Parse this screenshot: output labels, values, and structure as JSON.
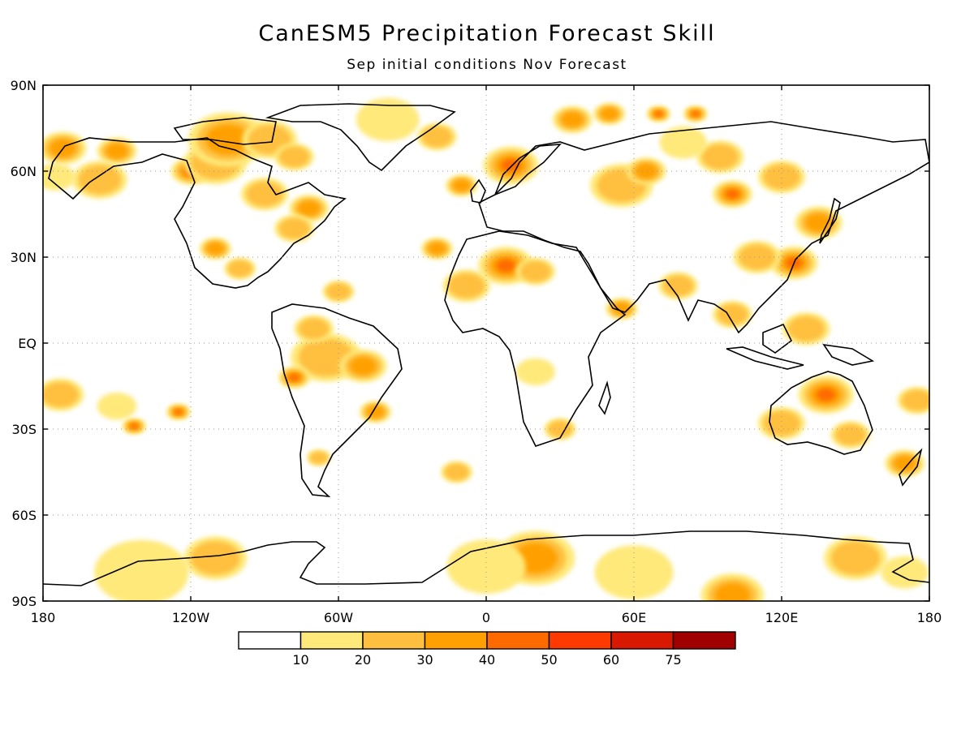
{
  "title": "CanESM5 Precipitation Forecast Skill",
  "subtitle": "Sep initial conditions   Nov Forecast",
  "map": {
    "projection": "equirectangular",
    "lon_range": [
      -180,
      180
    ],
    "lat_range": [
      -90,
      90
    ],
    "lat_ticks": [
      {
        "lat": 90,
        "label": "90N"
      },
      {
        "lat": 60,
        "label": "60N"
      },
      {
        "lat": 30,
        "label": "30N"
      },
      {
        "lat": 0,
        "label": "EQ"
      },
      {
        "lat": -30,
        "label": "30S"
      },
      {
        "lat": -60,
        "label": "60S"
      },
      {
        "lat": -90,
        "label": "90S"
      }
    ],
    "lon_ticks": [
      {
        "lon": -180,
        "label": "180"
      },
      {
        "lon": -120,
        "label": "120W"
      },
      {
        "lon": -60,
        "label": "60W"
      },
      {
        "lon": 0,
        "label": "0"
      },
      {
        "lon": 60,
        "label": "60E"
      },
      {
        "lon": 120,
        "label": "120E"
      },
      {
        "lon": 180,
        "label": "180"
      }
    ],
    "grid": "dotted",
    "skill_patches": [
      {
        "lon": -172,
        "lat": 68,
        "r": 6,
        "level": 3
      },
      {
        "lon": -150,
        "lat": 67,
        "r": 5,
        "level": 3
      },
      {
        "lon": -157,
        "lat": 57,
        "r": 7,
        "level": 2
      },
      {
        "lon": -175,
        "lat": 58,
        "r": 5,
        "level": 1
      },
      {
        "lon": -120,
        "lat": 60,
        "r": 5,
        "level": 4
      },
      {
        "lon": -110,
        "lat": 63,
        "r": 8,
        "level": 2
      },
      {
        "lon": -105,
        "lat": 71,
        "r": 10,
        "level": 3
      },
      {
        "lon": -88,
        "lat": 71,
        "r": 7,
        "level": 2
      },
      {
        "lon": -78,
        "lat": 65,
        "r": 5,
        "level": 2
      },
      {
        "lon": -90,
        "lat": 52,
        "r": 6,
        "level": 2
      },
      {
        "lon": -72,
        "lat": 47,
        "r": 5,
        "level": 3
      },
      {
        "lon": -78,
        "lat": 40,
        "r": 5,
        "level": 2
      },
      {
        "lon": -40,
        "lat": 78,
        "r": 8,
        "level": 1
      },
      {
        "lon": -20,
        "lat": 72,
        "r": 5,
        "level": 2
      },
      {
        "lon": -110,
        "lat": 33,
        "r": 4,
        "level": 3
      },
      {
        "lon": -100,
        "lat": 26,
        "r": 4,
        "level": 2
      },
      {
        "lon": -60,
        "lat": 18,
        "r": 4,
        "level": 2
      },
      {
        "lon": -65,
        "lat": -5,
        "r": 9,
        "level": 2
      },
      {
        "lon": -50,
        "lat": -8,
        "r": 6,
        "level": 3
      },
      {
        "lon": -70,
        "lat": 5,
        "r": 5,
        "level": 2
      },
      {
        "lon": -78,
        "lat": -12,
        "r": 4,
        "level": 4
      },
      {
        "lon": -45,
        "lat": -24,
        "r": 4,
        "level": 3
      },
      {
        "lon": -68,
        "lat": -40,
        "r": 3,
        "level": 2
      },
      {
        "lon": -173,
        "lat": -18,
        "r": 6,
        "level": 2
      },
      {
        "lon": -150,
        "lat": -22,
        "r": 5,
        "level": 1
      },
      {
        "lon": -143,
        "lat": -29,
        "r": 3,
        "level": 4
      },
      {
        "lon": -125,
        "lat": -24,
        "r": 3,
        "level": 4
      },
      {
        "lon": -20,
        "lat": 33,
        "r": 4,
        "level": 3
      },
      {
        "lon": 8,
        "lat": 27,
        "r": 7,
        "level": 4
      },
      {
        "lon": -8,
        "lat": 20,
        "r": 6,
        "level": 2
      },
      {
        "lon": 20,
        "lat": 25,
        "r": 5,
        "level": 2
      },
      {
        "lon": 10,
        "lat": 62,
        "r": 7,
        "level": 4
      },
      {
        "lon": -10,
        "lat": 55,
        "r": 4,
        "level": 3
      },
      {
        "lon": 35,
        "lat": 78,
        "r": 5,
        "level": 3
      },
      {
        "lon": 50,
        "lat": 80,
        "r": 4,
        "level": 3
      },
      {
        "lon": 70,
        "lat": 80,
        "r": 3,
        "level": 4
      },
      {
        "lon": 85,
        "lat": 80,
        "r": 3,
        "level": 4
      },
      {
        "lon": 55,
        "lat": 55,
        "r": 8,
        "level": 2
      },
      {
        "lon": 65,
        "lat": 60,
        "r": 5,
        "level": 3
      },
      {
        "lon": 100,
        "lat": 52,
        "r": 5,
        "level": 4
      },
      {
        "lon": 95,
        "lat": 65,
        "r": 6,
        "level": 2
      },
      {
        "lon": 80,
        "lat": 70,
        "r": 6,
        "level": 1
      },
      {
        "lon": 120,
        "lat": 58,
        "r": 6,
        "level": 2
      },
      {
        "lon": 135,
        "lat": 42,
        "r": 6,
        "level": 3
      },
      {
        "lon": 125,
        "lat": 28,
        "r": 6,
        "level": 4
      },
      {
        "lon": 110,
        "lat": 30,
        "r": 6,
        "level": 2
      },
      {
        "lon": 55,
        "lat": 12,
        "r": 4,
        "level": 3
      },
      {
        "lon": 78,
        "lat": 20,
        "r": 5,
        "level": 2
      },
      {
        "lon": 100,
        "lat": 10,
        "r": 5,
        "level": 2
      },
      {
        "lon": 130,
        "lat": 5,
        "r": 6,
        "level": 2
      },
      {
        "lon": 138,
        "lat": -18,
        "r": 7,
        "level": 4
      },
      {
        "lon": 120,
        "lat": -28,
        "r": 6,
        "level": 2
      },
      {
        "lon": 148,
        "lat": -32,
        "r": 5,
        "level": 2
      },
      {
        "lon": 170,
        "lat": -42,
        "r": 5,
        "level": 3
      },
      {
        "lon": 175,
        "lat": -20,
        "r": 5,
        "level": 2
      },
      {
        "lon": 20,
        "lat": -10,
        "r": 5,
        "level": 1
      },
      {
        "lon": 30,
        "lat": -30,
        "r": 4,
        "level": 2
      },
      {
        "lon": -12,
        "lat": -45,
        "r": 4,
        "level": 2
      },
      {
        "lon": -140,
        "lat": -80,
        "r": 12,
        "level": 1
      },
      {
        "lon": -110,
        "lat": -75,
        "r": 8,
        "level": 2
      },
      {
        "lon": 20,
        "lat": -75,
        "r": 10,
        "level": 3
      },
      {
        "lon": 0,
        "lat": -78,
        "r": 10,
        "level": 1
      },
      {
        "lon": 60,
        "lat": -80,
        "r": 10,
        "level": 1
      },
      {
        "lon": 100,
        "lat": -88,
        "r": 8,
        "level": 3
      },
      {
        "lon": 150,
        "lat": -75,
        "r": 8,
        "level": 2
      },
      {
        "lon": 170,
        "lat": -80,
        "r": 6,
        "level": 1
      }
    ]
  },
  "colorbar": {
    "colors": [
      "#ffffff",
      "#ffe97a",
      "#ffc040",
      "#ffa000",
      "#ff6a00",
      "#ff3a00",
      "#d81800",
      "#a00000"
    ],
    "labels": [
      "10",
      "20",
      "30",
      "40",
      "50",
      "60",
      "75"
    ]
  }
}
